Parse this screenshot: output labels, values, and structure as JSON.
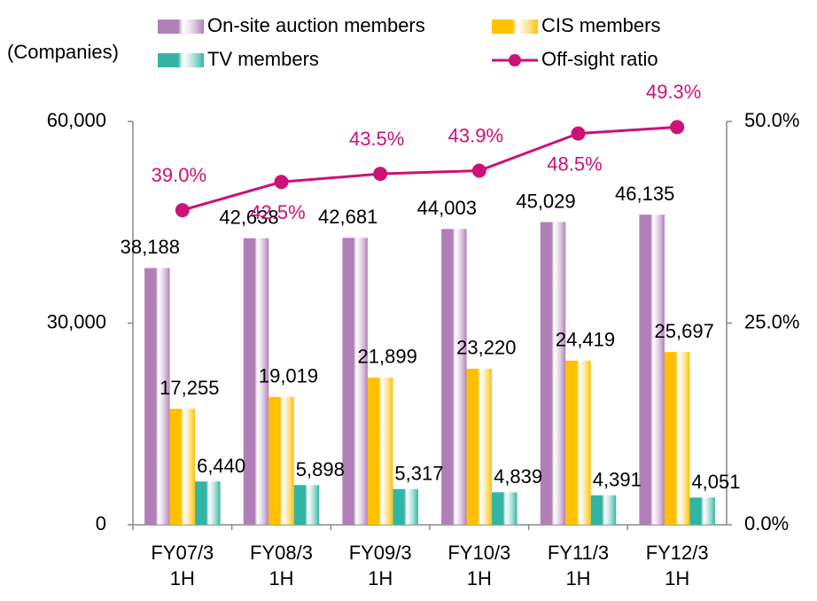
{
  "chart_data": {
    "type": "bar",
    "y_axis_label": "(Companies)",
    "categories": [
      [
        "FY07/3",
        "1H"
      ],
      [
        "FY08/3",
        "1H"
      ],
      [
        "FY09/3",
        "1H"
      ],
      [
        "FY10/3",
        "1H"
      ],
      [
        "FY11/3",
        "1H"
      ],
      [
        "FY12/3",
        "1H"
      ]
    ],
    "series": [
      {
        "name": "On-site auction members",
        "color": "#b07fb8",
        "values": [
          38188,
          42638,
          42681,
          44003,
          45029,
          46135
        ],
        "value_labels": [
          "38,188",
          "42,638",
          "42,681",
          "44,003",
          "45,029",
          "46,135"
        ]
      },
      {
        "name": "CIS members",
        "color": "#ffc000",
        "values": [
          17255,
          19019,
          21899,
          23220,
          24419,
          25697
        ],
        "value_labels": [
          "17,255",
          "19,019",
          "21,899",
          "23,220",
          "24,419",
          "25,697"
        ]
      },
      {
        "name": "TV members",
        "color": "#33b5a5",
        "values": [
          6440,
          5898,
          5317,
          4839,
          4391,
          4051
        ],
        "value_labels": [
          "6,440",
          "5,898",
          "5,317",
          "4,839",
          "4,391",
          "4,051"
        ]
      },
      {
        "name": "Off-sight ratio",
        "color": "#cc1177",
        "type": "line",
        "axis": "y2",
        "values": [
          39.0,
          42.5,
          43.5,
          43.9,
          48.5,
          49.3
        ],
        "value_labels": [
          "39.0%",
          "42.5%",
          "43.5%",
          "43.9%",
          "48.5%",
          "49.3%"
        ]
      }
    ],
    "ylim": [
      0,
      60000
    ],
    "yticks": [
      {
        "value": 0,
        "label": "0"
      },
      {
        "value": 30000,
        "label": "30,000"
      },
      {
        "value": 60000,
        "label": "60,000"
      }
    ],
    "y2lim": [
      0,
      50
    ],
    "y2ticks": [
      {
        "value": 0,
        "label": "0.0%"
      },
      {
        "value": 25,
        "label": "25.0%"
      },
      {
        "value": 50,
        "label": "50.0%"
      }
    ],
    "legend": "top"
  }
}
